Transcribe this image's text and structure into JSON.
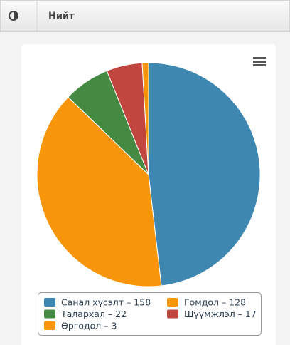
{
  "panel": {
    "title": "Нийт"
  },
  "chart_data": {
    "type": "pie",
    "categories": [
      "Санал хүсэлт – 158",
      "Гомдол – 128",
      "Талархал – 22",
      "Шүүмжлэл – 17",
      "Өргөдөл – 3"
    ],
    "values": [
      158,
      128,
      22,
      17,
      3
    ],
    "colors": [
      "#3d87b0",
      "#f7960b",
      "#458a43",
      "#c0463f",
      "#f7960b"
    ],
    "legend": "bottom"
  }
}
